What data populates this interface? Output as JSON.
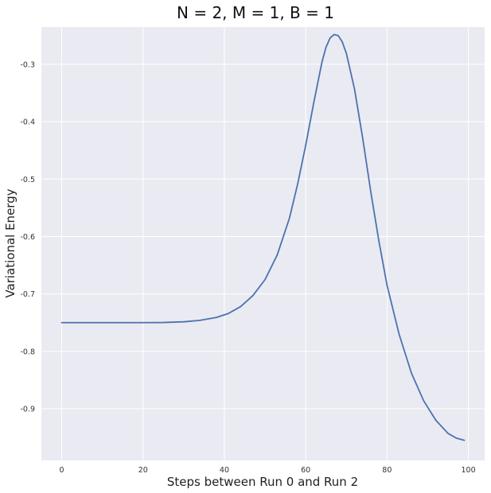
{
  "chart_data": {
    "type": "line",
    "title": "N = 2, M = 1, B = 1",
    "xlabel": "Steps between Run 0 and Run 2",
    "ylabel": "Variational Energy",
    "xlim": [
      -5,
      104
    ],
    "ylim": [
      -0.99,
      -0.235
    ],
    "xticks": [
      0,
      20,
      40,
      60,
      80,
      100
    ],
    "yticks": [
      -0.9,
      -0.8,
      -0.7,
      -0.6,
      -0.5,
      -0.4,
      -0.3
    ],
    "grid": true,
    "colors": {
      "background": "#EAEAF2",
      "grid": "#FFFFFF",
      "series": "#4C72B0"
    },
    "series": [
      {
        "x": [
          0,
          5,
          10,
          15,
          20,
          25,
          30,
          34,
          38,
          41,
          44,
          47,
          50,
          53,
          56,
          58,
          60,
          62,
          64,
          65,
          66,
          67,
          68,
          69,
          70,
          72,
          74,
          76,
          78,
          80,
          83,
          86,
          89,
          92,
          95,
          97,
          99
        ],
        "values": [
          -0.75,
          -0.75,
          -0.75,
          -0.75,
          -0.75,
          -0.7497,
          -0.7485,
          -0.746,
          -0.741,
          -0.734,
          -0.722,
          -0.703,
          -0.675,
          -0.632,
          -0.568,
          -0.509,
          -0.441,
          -0.366,
          -0.296,
          -0.27,
          -0.254,
          -0.248,
          -0.25,
          -0.261,
          -0.281,
          -0.343,
          -0.428,
          -0.522,
          -0.608,
          -0.685,
          -0.771,
          -0.838,
          -0.886,
          -0.92,
          -0.943,
          -0.951,
          -0.955
        ]
      }
    ]
  }
}
